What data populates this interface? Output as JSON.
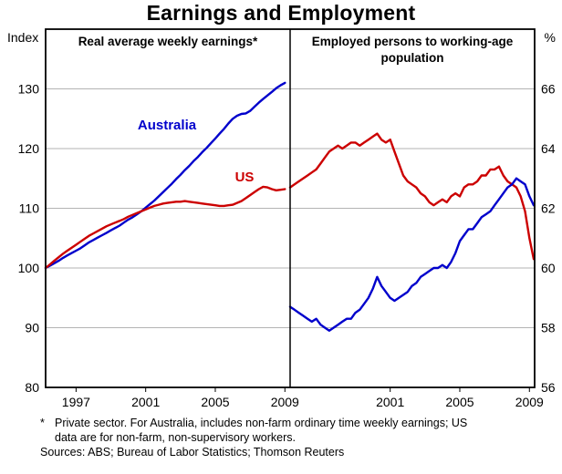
{
  "title": "Earnings and Employment",
  "colors": {
    "australia": "#0000cc",
    "us": "#cc0000",
    "grid": "#b3b3b3",
    "frame": "#000000"
  },
  "chart_data": {
    "type": "line",
    "title": "Earnings and Employment",
    "layout": "two-panel, shared frame, center divider, gridlines on",
    "panels": [
      {
        "title": "Real average weekly earnings*",
        "ylabel": "Index",
        "y_axis_side": "left",
        "ylim": [
          80,
          140
        ],
        "yticks": [
          80,
          90,
          100,
          110,
          120,
          130
        ],
        "xlim": [
          1995.25,
          2009.3
        ],
        "xticks": [
          1997,
          2001,
          2005,
          2009
        ],
        "series": [
          {
            "name": "Australia",
            "color": "#0000cc",
            "x_start": 1995.25,
            "x_step": 0.25,
            "values": [
              100.0,
              100.4,
              100.8,
              101.2,
              101.7,
              102.1,
              102.5,
              102.9,
              103.3,
              103.8,
              104.3,
              104.7,
              105.1,
              105.5,
              105.9,
              106.3,
              106.7,
              107.1,
              107.6,
              108.1,
              108.5,
              109.0,
              109.5,
              110.1,
              110.7,
              111.3,
              112.0,
              112.7,
              113.4,
              114.1,
              114.9,
              115.6,
              116.4,
              117.1,
              117.9,
              118.6,
              119.4,
              120.1,
              120.9,
              121.7,
              122.5,
              123.3,
              124.2,
              125.0,
              125.5,
              125.8,
              125.9,
              126.3,
              127.0,
              127.7,
              128.3,
              128.9,
              129.5,
              130.1,
              130.6,
              131.0
            ]
          },
          {
            "name": "US",
            "color": "#cc0000",
            "x_start": 1995.25,
            "x_step": 0.25,
            "values": [
              100.0,
              100.6,
              101.2,
              101.8,
              102.4,
              102.9,
              103.4,
              103.9,
              104.4,
              104.9,
              105.4,
              105.8,
              106.2,
              106.6,
              107.0,
              107.3,
              107.6,
              107.9,
              108.2,
              108.6,
              108.9,
              109.2,
              109.5,
              109.8,
              110.1,
              110.4,
              110.6,
              110.8,
              110.9,
              111.0,
              111.1,
              111.1,
              111.2,
              111.1,
              111.0,
              110.9,
              110.8,
              110.7,
              110.6,
              110.5,
              110.4,
              110.4,
              110.5,
              110.6,
              110.9,
              111.2,
              111.7,
              112.2,
              112.7,
              113.2,
              113.6,
              113.5,
              113.2,
              113.0,
              113.1,
              113.2
            ]
          }
        ]
      },
      {
        "title": "Employed persons to working-age population",
        "ylabel": "%",
        "y_axis_side": "right",
        "ylim": [
          56,
          68
        ],
        "yticks": [
          56,
          58,
          60,
          62,
          64,
          66
        ],
        "xlim": [
          1995.25,
          2009.3
        ],
        "xticks": [
          2001,
          2005,
          2009
        ],
        "series": [
          {
            "name": "US",
            "color": "#cc0000",
            "x_start": 1995.25,
            "x_step": 0.25,
            "values": [
              62.7,
              62.8,
              62.9,
              63.0,
              63.1,
              63.2,
              63.3,
              63.5,
              63.7,
              63.9,
              64.0,
              64.1,
              64.0,
              64.1,
              64.2,
              64.2,
              64.1,
              64.2,
              64.3,
              64.4,
              64.5,
              64.3,
              64.2,
              64.3,
              63.9,
              63.5,
              63.1,
              62.9,
              62.8,
              62.7,
              62.5,
              62.4,
              62.2,
              62.1,
              62.2,
              62.3,
              62.2,
              62.4,
              62.5,
              62.4,
              62.7,
              62.8,
              62.8,
              62.9,
              63.1,
              63.1,
              63.3,
              63.3,
              63.4,
              63.1,
              62.9,
              62.8,
              62.7,
              62.4,
              61.9,
              61.0,
              60.3
            ]
          },
          {
            "name": "Australia",
            "color": "#0000cc",
            "x_start": 1995.25,
            "x_step": 0.25,
            "values": [
              58.7,
              58.6,
              58.5,
              58.4,
              58.3,
              58.2,
              58.3,
              58.1,
              58.0,
              57.9,
              58.0,
              58.1,
              58.2,
              58.3,
              58.3,
              58.5,
              58.6,
              58.8,
              59.0,
              59.3,
              59.7,
              59.4,
              59.2,
              59.0,
              58.9,
              59.0,
              59.1,
              59.2,
              59.4,
              59.5,
              59.7,
              59.8,
              59.9,
              60.0,
              60.0,
              60.1,
              60.0,
              60.2,
              60.5,
              60.9,
              61.1,
              61.3,
              61.3,
              61.5,
              61.7,
              61.8,
              61.9,
              62.1,
              62.3,
              62.5,
              62.7,
              62.8,
              63.0,
              62.9,
              62.8,
              62.4,
              62.1
            ]
          }
        ]
      }
    ]
  },
  "annotations": {
    "australia_label": "Australia",
    "us_label": "US"
  },
  "footnote": {
    "marker": "*",
    "text": "Private sector. For Australia, includes non-farm ordinary time weekly earnings; US data are for non-farm, non-supervisory workers."
  },
  "sources": "Sources: ABS; Bureau of Labor Statistics; Thomson Reuters"
}
